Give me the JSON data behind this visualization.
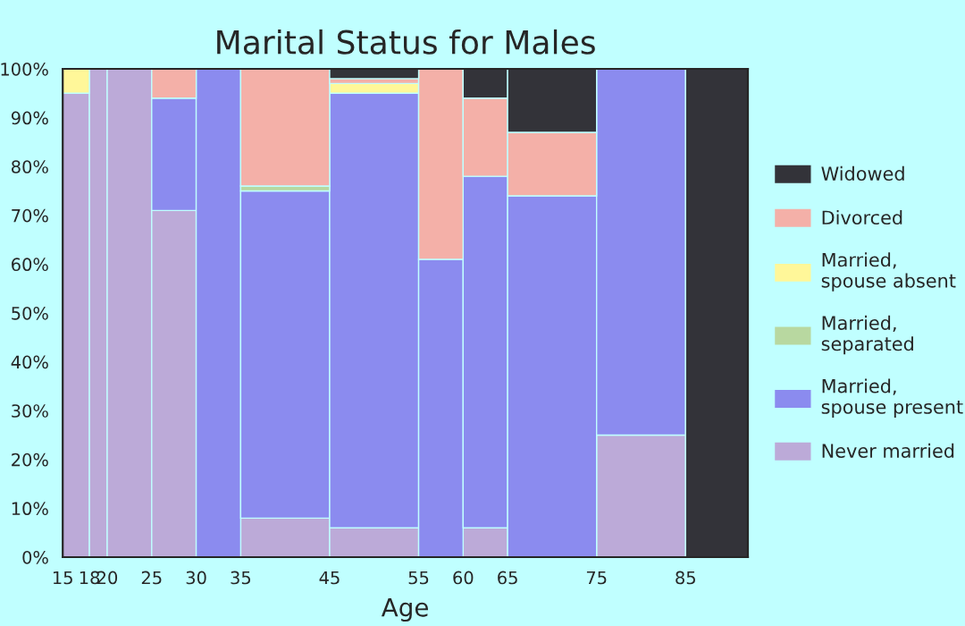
{
  "chart_data": {
    "type": "bar",
    "stacked": true,
    "title": "Marital Status for Males",
    "xlabel": "Age",
    "x": [
      16.5,
      19,
      22.5,
      27.5,
      32.5,
      40,
      50,
      57.5,
      62.5,
      70,
      80,
      88.5
    ],
    "xlim": [
      15,
      92
    ],
    "xticks": [
      15,
      18,
      20,
      25,
      30,
      35,
      45,
      55,
      60,
      65,
      75,
      85
    ],
    "ylim": [
      0,
      100
    ],
    "yticks": [
      {
        "value": 0,
        "label": "0%"
      },
      {
        "value": 10,
        "label": "10%"
      },
      {
        "value": 20,
        "label": "20%"
      },
      {
        "value": 30,
        "label": "30%"
      },
      {
        "value": 40,
        "label": "40%"
      },
      {
        "value": 50,
        "label": "50%"
      },
      {
        "value": 60,
        "label": "60%"
      },
      {
        "value": 70,
        "label": "70%"
      },
      {
        "value": 80,
        "label": "80%"
      },
      {
        "value": 90,
        "label": "90%"
      },
      {
        "value": 100,
        "label": "100%"
      }
    ],
    "legend": "right",
    "series": [
      {
        "name": "Never married",
        "color": "#bcaad8",
        "values": [
          95,
          100,
          100,
          71,
          null,
          8,
          6,
          null,
          6,
          null,
          25,
          null
        ]
      },
      {
        "name": "Married,\nspouse present",
        "color": "#8b8bef",
        "values": [
          null,
          null,
          null,
          23,
          100,
          67,
          89,
          61,
          72,
          74,
          75,
          null
        ]
      },
      {
        "name": "Married,\nseparated",
        "color": "#b8d8a0",
        "values": [
          null,
          null,
          null,
          null,
          null,
          1,
          null,
          null,
          null,
          null,
          null,
          null
        ]
      },
      {
        "name": "Married,\nspouse absent",
        "color": "#fff799",
        "values": [
          5,
          null,
          null,
          null,
          null,
          null,
          2,
          null,
          null,
          null,
          null,
          null
        ]
      },
      {
        "name": "Divorced",
        "color": "#f4b0a8",
        "values": [
          null,
          null,
          null,
          6,
          null,
          24,
          1,
          39,
          16,
          13,
          null,
          null
        ]
      },
      {
        "name": "Widowed",
        "color": "#333339",
        "values": [
          null,
          null,
          null,
          null,
          null,
          null,
          2,
          null,
          6,
          13,
          null,
          100
        ]
      }
    ]
  }
}
